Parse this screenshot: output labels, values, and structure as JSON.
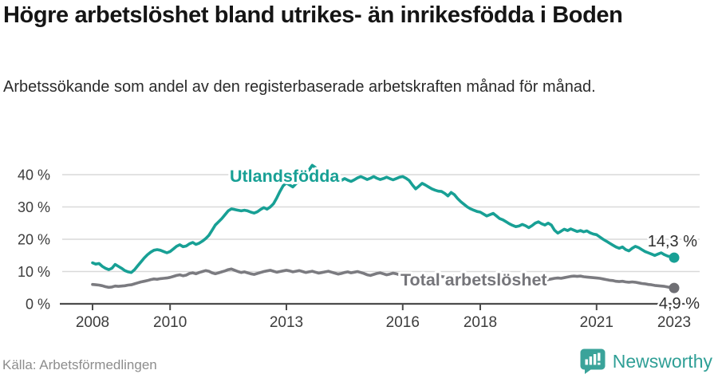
{
  "header": {
    "title": "Högre arbetslöshet bland utrikes- än inrikesfödda i Boden",
    "subtitle": "Arbetssökande som andel av den registerbaserade arbetskraften månad för månad."
  },
  "chart_data": {
    "type": "line",
    "title": "Arbetssökande som andel av den registerbaserade arbetskraften",
    "x_start_year": 2008,
    "x_step_months": 1,
    "x_end": "2023-01",
    "xticks": [
      2008,
      2010,
      2013,
      2016,
      2018,
      2021,
      2023
    ],
    "yticks": [
      0,
      10,
      20,
      30,
      40
    ],
    "ytick_suffix": " %",
    "ylim": [
      0,
      44
    ],
    "grid": "horizontal",
    "legend_position": "inline-labels",
    "series": [
      {
        "name": "Utlandsfödda",
        "color": "#18a095",
        "end_label": "14,3 %",
        "end_value": 14.3,
        "values": [
          12.7,
          12.3,
          12.5,
          11.6,
          11.0,
          10.6,
          11.0,
          12.2,
          11.6,
          11.0,
          10.3,
          9.9,
          9.7,
          10.6,
          11.8,
          13.0,
          14.2,
          15.2,
          16.0,
          16.6,
          16.8,
          16.6,
          16.2,
          15.8,
          16.2,
          17.0,
          17.8,
          18.3,
          17.7,
          17.9,
          18.6,
          19.0,
          18.4,
          18.8,
          19.4,
          20.2,
          21.2,
          22.8,
          24.4,
          25.4,
          26.4,
          27.6,
          28.8,
          29.4,
          29.2,
          29.0,
          28.8,
          29.0,
          28.8,
          28.4,
          28.1,
          28.5,
          29.2,
          29.8,
          29.3,
          30.0,
          31.0,
          32.8,
          34.8,
          36.6,
          37.4,
          36.8,
          36.2,
          37.2,
          38.2,
          39.2,
          40.2,
          41.4,
          42.9,
          42.2,
          40.8,
          40.2,
          39.8,
          39.2,
          38.4,
          38.0,
          37.7,
          38.2,
          38.8,
          38.3,
          37.9,
          38.4,
          39.0,
          39.4,
          39.0,
          38.5,
          38.9,
          39.4,
          38.9,
          38.5,
          38.8,
          39.2,
          38.8,
          38.4,
          38.8,
          39.2,
          39.4,
          38.9,
          38.2,
          36.8,
          35.6,
          36.4,
          37.3,
          36.8,
          36.2,
          35.6,
          35.2,
          34.9,
          34.8,
          34.2,
          33.4,
          34.5,
          33.8,
          32.6,
          31.6,
          30.8,
          30.0,
          29.4,
          29.0,
          28.6,
          28.4,
          27.8,
          27.2,
          27.6,
          28.0,
          27.2,
          26.4,
          26.0,
          25.4,
          24.8,
          24.3,
          23.9,
          24.1,
          24.6,
          24.2,
          23.6,
          24.2,
          25.0,
          25.4,
          24.8,
          24.4,
          25.0,
          24.4,
          22.8,
          21.9,
          22.5,
          23.1,
          22.7,
          23.2,
          22.8,
          22.4,
          22.7,
          22.3,
          22.6,
          22.0,
          21.6,
          21.4,
          20.7,
          20.0,
          19.4,
          18.8,
          18.2,
          17.6,
          17.2,
          17.6,
          16.8,
          16.4,
          17.2,
          17.8,
          17.4,
          16.8,
          16.2,
          15.8,
          15.4,
          15.0,
          15.4,
          15.8,
          15.2,
          14.8,
          14.6,
          14.3
        ]
      },
      {
        "name": "Total arbetslöshet",
        "color": "#7b7b80",
        "end_label": "4,9 %",
        "end_value": 4.9,
        "values": [
          6.0,
          5.9,
          5.8,
          5.6,
          5.3,
          5.1,
          5.2,
          5.5,
          5.4,
          5.5,
          5.6,
          5.8,
          5.9,
          6.2,
          6.5,
          6.8,
          7.0,
          7.2,
          7.5,
          7.7,
          7.6,
          7.8,
          7.9,
          8.0,
          8.2,
          8.5,
          8.8,
          9.0,
          8.7,
          8.9,
          9.4,
          9.6,
          9.3,
          9.7,
          10.0,
          10.3,
          10.1,
          9.6,
          9.3,
          9.6,
          9.9,
          10.2,
          10.6,
          10.8,
          10.4,
          10.0,
          9.7,
          9.9,
          9.6,
          9.3,
          9.1,
          9.4,
          9.7,
          10.0,
          10.2,
          10.4,
          10.1,
          9.8,
          10.0,
          10.2,
          10.4,
          10.2,
          9.9,
          10.1,
          10.3,
          10.0,
          9.7,
          9.9,
          10.1,
          9.8,
          9.5,
          9.7,
          9.9,
          10.1,
          9.8,
          9.5,
          9.2,
          9.4,
          9.7,
          9.9,
          9.6,
          9.8,
          10.0,
          9.7,
          9.4,
          9.0,
          8.8,
          9.1,
          9.4,
          9.6,
          9.3,
          9.0,
          9.2,
          9.5,
          9.3,
          9.0,
          9.2,
          9.4,
          9.1,
          8.8,
          8.6,
          8.4,
          8.6,
          8.8,
          8.5,
          8.3,
          8.5,
          8.7,
          8.5,
          8.3,
          8.1,
          8.4,
          8.6,
          8.4,
          8.2,
          8.0,
          7.8,
          8.0,
          8.2,
          8.0,
          7.8,
          7.6,
          7.5,
          7.7,
          7.9,
          7.7,
          7.5,
          7.3,
          7.2,
          7.4,
          7.6,
          7.4,
          7.3,
          7.5,
          7.3,
          7.1,
          7.3,
          7.5,
          7.7,
          7.5,
          7.3,
          7.5,
          7.7,
          7.9,
          8.0,
          7.9,
          8.1,
          8.3,
          8.5,
          8.6,
          8.5,
          8.6,
          8.4,
          8.3,
          8.2,
          8.1,
          8.0,
          7.9,
          7.7,
          7.5,
          7.3,
          7.2,
          7.0,
          6.9,
          7.0,
          6.8,
          6.7,
          6.8,
          6.7,
          6.5,
          6.3,
          6.2,
          6.0,
          5.9,
          5.7,
          5.6,
          5.5,
          5.4,
          5.2,
          5.1,
          4.9
        ]
      }
    ]
  },
  "colors": {
    "accent_teal": "#18a095",
    "line_gray": "#7b7b80",
    "grid": "#d9d9d9",
    "axis": "#4c4c4c",
    "logo_teal": "#2f9f96"
  },
  "footer": {
    "source": "Källa: Arbetsförmedlingen",
    "brand": "Newsworthy"
  }
}
